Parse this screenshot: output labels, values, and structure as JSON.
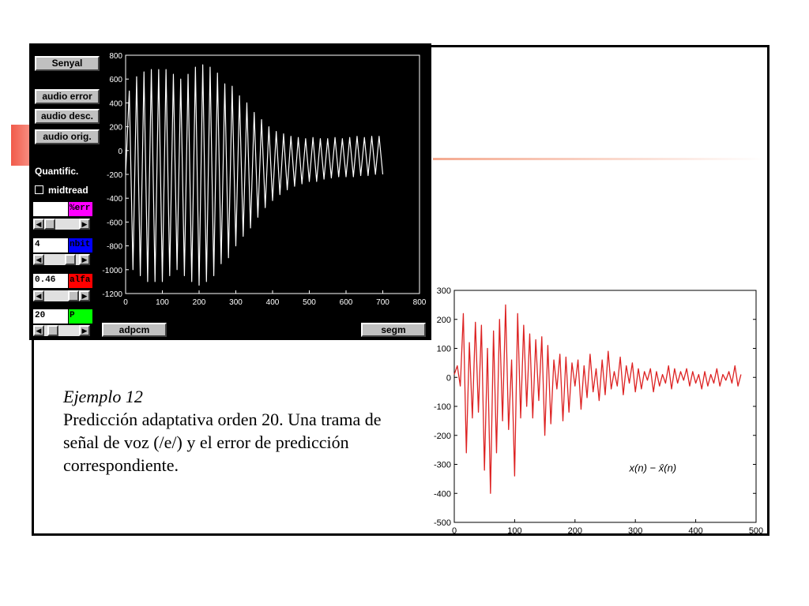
{
  "app": {
    "signal_button": "Senyal",
    "audio_error_button": "audio error",
    "audio_desc_button": "audio desc.",
    "audio_orig_button": "audio orig.",
    "quant_label": "Quantific.",
    "midtread_label": "midtread",
    "midtread_checked": false,
    "err_field": {
      "value": "",
      "tag": "%err",
      "tag_color": "#ff00ff"
    },
    "nbit_field": {
      "value": "4",
      "tag": "nbit",
      "tag_color": "#0000ff"
    },
    "alfa_field": {
      "value": "0.46",
      "tag": "alfa",
      "tag_color": "#ff0000"
    },
    "p_field": {
      "value": "20",
      "tag": "P",
      "tag_color": "#00ff00"
    },
    "adpcm_button": "adpcm",
    "segm_button": "segm",
    "icons": [
      "left-arrow-icon",
      "right-arrow-icon",
      "checkbox-icon"
    ]
  },
  "caption": {
    "title": "Ejemplo 12",
    "body": "Predicción adaptativa orden 20. Una trama de señal de voz (/e/) y el error de predicción correspondiente."
  },
  "chart_data": [
    {
      "type": "line",
      "title": "",
      "xlabel": "",
      "ylabel": "",
      "xlim": [
        0,
        800
      ],
      "ylim": [
        -1200,
        800
      ],
      "xticks": [
        "0",
        "100",
        "200",
        "300",
        "400",
        "500",
        "600",
        "700",
        "800"
      ],
      "yticks": [
        "800",
        "600",
        "400",
        "200",
        "0",
        "-200",
        "-400",
        "-600",
        "-800",
        "-1000",
        "-1200"
      ],
      "series_color": "#ffffff",
      "series": [
        {
          "x": [
            0,
            10,
            20,
            30,
            40,
            50,
            60,
            70,
            80,
            90,
            100,
            110,
            120,
            130,
            140,
            150,
            160,
            170,
            180,
            190,
            200,
            210,
            220,
            230,
            240,
            250,
            260,
            270,
            280,
            290,
            300,
            310,
            320,
            330,
            340,
            350,
            360,
            370,
            380,
            390,
            400,
            410,
            420,
            430,
            440,
            450,
            460,
            470,
            480,
            490,
            500,
            510,
            520,
            530,
            540,
            550,
            560,
            570,
            580,
            590,
            600,
            610,
            620,
            630,
            640,
            650,
            660,
            670,
            680,
            690,
            700
          ],
          "y": [
            -200,
            500,
            -1000,
            620,
            -1050,
            660,
            -1100,
            680,
            -1100,
            680,
            -1100,
            680,
            -1050,
            640,
            -1000,
            600,
            -1050,
            640,
            -1100,
            700,
            -1130,
            720,
            -1100,
            700,
            -1050,
            650,
            -950,
            560,
            -900,
            540,
            -800,
            460,
            -720,
            400,
            -650,
            320,
            -560,
            260,
            -480,
            200,
            -420,
            160,
            -370,
            140,
            -330,
            120,
            -300,
            110,
            -280,
            100,
            -260,
            110,
            -260,
            100,
            -240,
            100,
            -230,
            110,
            -220,
            100,
            -220,
            110,
            -220,
            120,
            -210,
            110,
            -210,
            120,
            -200,
            120,
            -200
          ]
        }
      ]
    },
    {
      "type": "line",
      "title": "",
      "xlabel": "",
      "ylabel": "",
      "annotation": "x(n) − x̂(n)",
      "xlim": [
        0,
        500
      ],
      "ylim": [
        -500,
        300
      ],
      "xticks": [
        "0",
        "100",
        "200",
        "300",
        "400",
        "500"
      ],
      "yticks": [
        "300",
        "200",
        "100",
        "0",
        "-100",
        "-200",
        "-300",
        "-400",
        "-500"
      ],
      "series_color": "#dd2222",
      "series": [
        {
          "x": [
            0,
            5,
            10,
            15,
            20,
            25,
            30,
            35,
            40,
            45,
            50,
            55,
            60,
            65,
            70,
            75,
            80,
            85,
            90,
            95,
            100,
            105,
            110,
            115,
            120,
            125,
            130,
            135,
            140,
            145,
            150,
            155,
            160,
            165,
            170,
            175,
            180,
            185,
            190,
            195,
            200,
            205,
            210,
            215,
            220,
            225,
            230,
            235,
            240,
            245,
            250,
            255,
            260,
            265,
            270,
            275,
            280,
            285,
            290,
            295,
            300,
            305,
            310,
            315,
            320,
            325,
            330,
            335,
            340,
            345,
            350,
            355,
            360,
            365,
            370,
            375,
            380,
            385,
            390,
            395,
            400,
            405,
            410,
            415,
            420,
            425,
            430,
            435,
            440,
            445,
            450,
            455,
            460,
            465,
            470,
            475
          ],
          "y": [
            10,
            40,
            -30,
            220,
            -260,
            120,
            -140,
            190,
            -120,
            180,
            -320,
            100,
            -400,
            160,
            -260,
            200,
            -150,
            250,
            -180,
            60,
            -340,
            220,
            -140,
            180,
            -100,
            150,
            -140,
            130,
            -80,
            140,
            -200,
            110,
            -160,
            60,
            -40,
            80,
            -150,
            70,
            -120,
            50,
            -30,
            60,
            -110,
            40,
            -70,
            80,
            -50,
            30,
            -80,
            60,
            -60,
            90,
            -40,
            20,
            -30,
            70,
            -60,
            40,
            -20,
            50,
            -50,
            30,
            -40,
            20,
            -10,
            30,
            -50,
            20,
            -30,
            10,
            -20,
            40,
            -40,
            30,
            -20,
            20,
            -10,
            30,
            -30,
            20,
            -20,
            10,
            -40,
            20,
            -30,
            10,
            -20,
            30,
            -30,
            10,
            -10,
            20,
            -20,
            40,
            -30,
            10
          ]
        }
      ]
    }
  ]
}
